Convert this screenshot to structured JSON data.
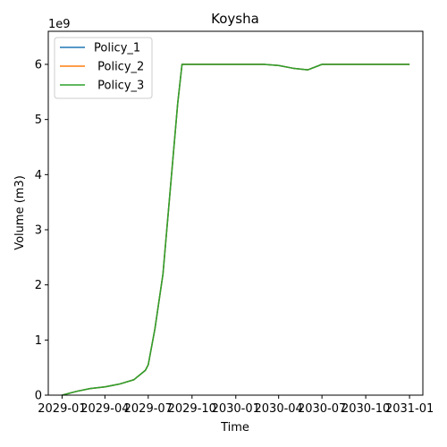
{
  "chart_data": {
    "type": "line",
    "title": "Koysha",
    "xlabel": "Time",
    "ylabel": "Volume (m3)",
    "y_offset_label": "1e9",
    "ylim": [
      0,
      6600000000.0
    ],
    "xlim": [
      "2028-12-03",
      "2031-01-29"
    ],
    "x_ticks": [
      "2029-01-01",
      "2029-04-01",
      "2029-07-01",
      "2029-10-01",
      "2030-01-01",
      "2030-04-01",
      "2030-07-01",
      "2030-10-01",
      "2031-01-01"
    ],
    "x_tick_labels": [
      "2029-01",
      "2029-04",
      "2029-07",
      "2029-10",
      "2030-01",
      "2030-04",
      "2030-07",
      "2030-10",
      "2031-01"
    ],
    "y_ticks": [
      0,
      1000000000.0,
      2000000000.0,
      3000000000.0,
      4000000000.0,
      5000000000.0,
      6000000000.0
    ],
    "y_tick_labels": [
      "0",
      "1",
      "2",
      "3",
      "4",
      "5",
      "6"
    ],
    "grid": false,
    "legend_position": "top-left",
    "x": [
      "2029-01-01",
      "2029-02-01",
      "2029-03-01",
      "2029-04-01",
      "2029-05-01",
      "2029-06-01",
      "2029-06-25",
      "2029-07-01",
      "2029-07-15",
      "2029-08-01",
      "2029-08-15",
      "2029-09-01",
      "2029-09-10",
      "2029-10-01",
      "2029-11-01",
      "2029-12-01",
      "2030-01-01",
      "2030-02-01",
      "2030-03-01",
      "2030-04-01",
      "2030-05-01",
      "2030-06-01",
      "2030-07-01",
      "2030-08-01",
      "2030-09-01",
      "2030-10-01",
      "2030-11-01",
      "2030-12-01",
      "2031-01-01"
    ],
    "series": [
      {
        "name": "Policy_1",
        "color": "#1f77b4",
        "values": [
          0,
          70000000.0,
          120000000.0,
          150000000.0,
          200000000.0,
          280000000.0,
          450000000.0,
          550000000.0,
          1200000000.0,
          2200000000.0,
          3600000000.0,
          5300000000.0,
          6000000000.0,
          6000000000.0,
          6000000000.0,
          6000000000.0,
          6000000000.0,
          6000000000.0,
          6000000000.0,
          5980000000.0,
          5930000000.0,
          5900000000.0,
          6000000000.0,
          6000000000.0,
          6000000000.0,
          6000000000.0,
          6000000000.0,
          6000000000.0,
          6000000000.0
        ]
      },
      {
        "name": " Policy_2",
        "color": "#ff7f0e",
        "values": [
          0,
          70000000.0,
          120000000.0,
          150000000.0,
          200000000.0,
          280000000.0,
          450000000.0,
          550000000.0,
          1200000000.0,
          2200000000.0,
          3600000000.0,
          5300000000.0,
          6000000000.0,
          6000000000.0,
          6000000000.0,
          6000000000.0,
          6000000000.0,
          6000000000.0,
          6000000000.0,
          5980000000.0,
          5930000000.0,
          5900000000.0,
          6000000000.0,
          6000000000.0,
          6000000000.0,
          6000000000.0,
          6000000000.0,
          6000000000.0,
          6000000000.0
        ]
      },
      {
        "name": " Policy_3",
        "color": "#2ca02c",
        "values": [
          0,
          70000000.0,
          120000000.0,
          150000000.0,
          200000000.0,
          280000000.0,
          450000000.0,
          550000000.0,
          1200000000.0,
          2200000000.0,
          3600000000.0,
          5300000000.0,
          6000000000.0,
          6000000000.0,
          6000000000.0,
          6000000000.0,
          6000000000.0,
          6000000000.0,
          6000000000.0,
          5980000000.0,
          5930000000.0,
          5900000000.0,
          6000000000.0,
          6000000000.0,
          6000000000.0,
          6000000000.0,
          6000000000.0,
          6000000000.0,
          6000000000.0
        ]
      }
    ]
  }
}
